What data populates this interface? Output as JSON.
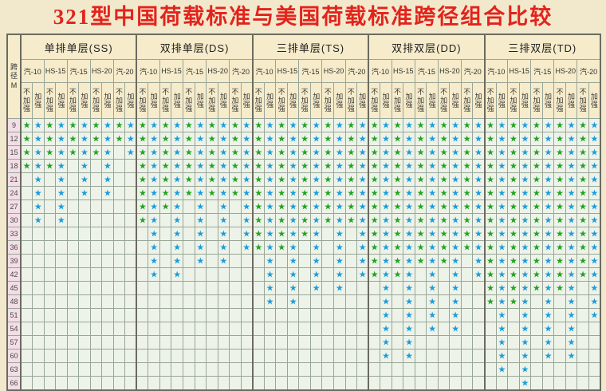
{
  "title": "321型中国荷载标准与美国荷载标准跨径组合比较",
  "corner_label": "跨径M",
  "strengthen_labels": [
    "不加强",
    "加强"
  ],
  "subcol_labels": [
    "汽-10",
    "HS-15",
    "汽-15",
    "HS-20",
    "汽-20"
  ],
  "groups": [
    {
      "code": "SS",
      "name": "单排单层(SS)"
    },
    {
      "code": "DS",
      "name": "双排单层(DS)"
    },
    {
      "code": "TS",
      "name": "三排单层(TS)"
    },
    {
      "code": "DD",
      "name": "双排双层(DD)"
    },
    {
      "code": "TD",
      "name": "三排双层(TD)"
    }
  ],
  "spans": [
    9,
    12,
    15,
    18,
    21,
    24,
    27,
    30,
    33,
    36,
    39,
    42,
    45,
    48,
    51,
    54,
    57,
    60,
    63,
    66
  ],
  "legend": {
    "green_star_color": "#22a122",
    "blue_star_color": "#1b9bdc",
    "green_means": "不加强",
    "blue_means": "加强"
  },
  "star_matrix": {
    "SS": [
      "GBGBGBGBGB",
      "GBGBGBGBGB",
      "GBGBGBGB.B",
      "GBGB.B.B..",
      ".B.B.B.B..",
      ".B.B.B.B..",
      ".B.B......",
      ".B.B......",
      "..........",
      "..........",
      "..........",
      "..........",
      "..........",
      "..........",
      "..........",
      "..........",
      "..........",
      "..........",
      "..........",
      ".........."
    ],
    "DS": [
      "GBGBGBGBGB",
      "GBGBGBGBGB",
      "GBGBGBGBGB",
      "GBGBGBGBGB",
      "GBGBGBGBGB",
      "GBGBGBGBGB",
      "GBGB.B.B.B",
      "GB.B.B.B.B",
      ".B.B.B.B.B",
      ".B.B.B.B.B",
      ".B.B.B.B..",
      ".B.B......",
      "..........",
      "..........",
      "..........",
      "..........",
      "..........",
      "..........",
      "..........",
      ".........."
    ],
    "TS": [
      "GBGBGBGBGB",
      "GBGBGBGBGB",
      "GBGBGBGBGB",
      "GBGBGBGBGB",
      "GBGBGBGBGB",
      "GBGBGBGBGB",
      "GBGBGBGBGB",
      "GBGBGBGBGB",
      "GBGBGB.B.B",
      "GBGB.B.B.B",
      ".B.B.B.B.B",
      ".B.B.B.B.B",
      ".B.B.B.B..",
      ".B.B......",
      "..........",
      "..........",
      "..........",
      "..........",
      "..........",
      ".........."
    ],
    "DD": [
      "GBGBGBGBGB",
      "GBGBGBGBGB",
      "GBGBGBGBGB",
      "GBGBGBGBGB",
      "GBGBGBGBGB",
      "GBGBGBGBGB",
      "GBGBGBGBGB",
      "GBGBGBGBGB",
      "GBGBGBGBGB",
      "GBGBGBGBGB",
      "GBGBGBGB.B",
      "GBGB.B.B.B",
      ".B.B.B.B..",
      ".B.B.B.B..",
      ".B.B.B.B..",
      ".B.B.B.B..",
      ".B.B......",
      ".B.B......",
      "..........",
      ".........."
    ],
    "TD": [
      "GBGBGBGBGB",
      "GBGBGBGBGB",
      "GBGBGBGBGB",
      "GBGBGBGBGB",
      "GBGBGBGBGB",
      "GBGBGBGBGB",
      "GBGBGBGBGB",
      "GBGBGBGBGB",
      "GBGBGBGBGB",
      "GBGBGBGBGB",
      "GBGBGBGBGB",
      "GBGBGBGBGB",
      "GBGBGBGB.B",
      "GBGB.B.B.B",
      ".B.B.B.B.B",
      ".B.B.B.B..",
      ".B.B.B.B..",
      ".B.B.B.B..",
      ".B.B......",
      "...B......"
    ]
  }
}
